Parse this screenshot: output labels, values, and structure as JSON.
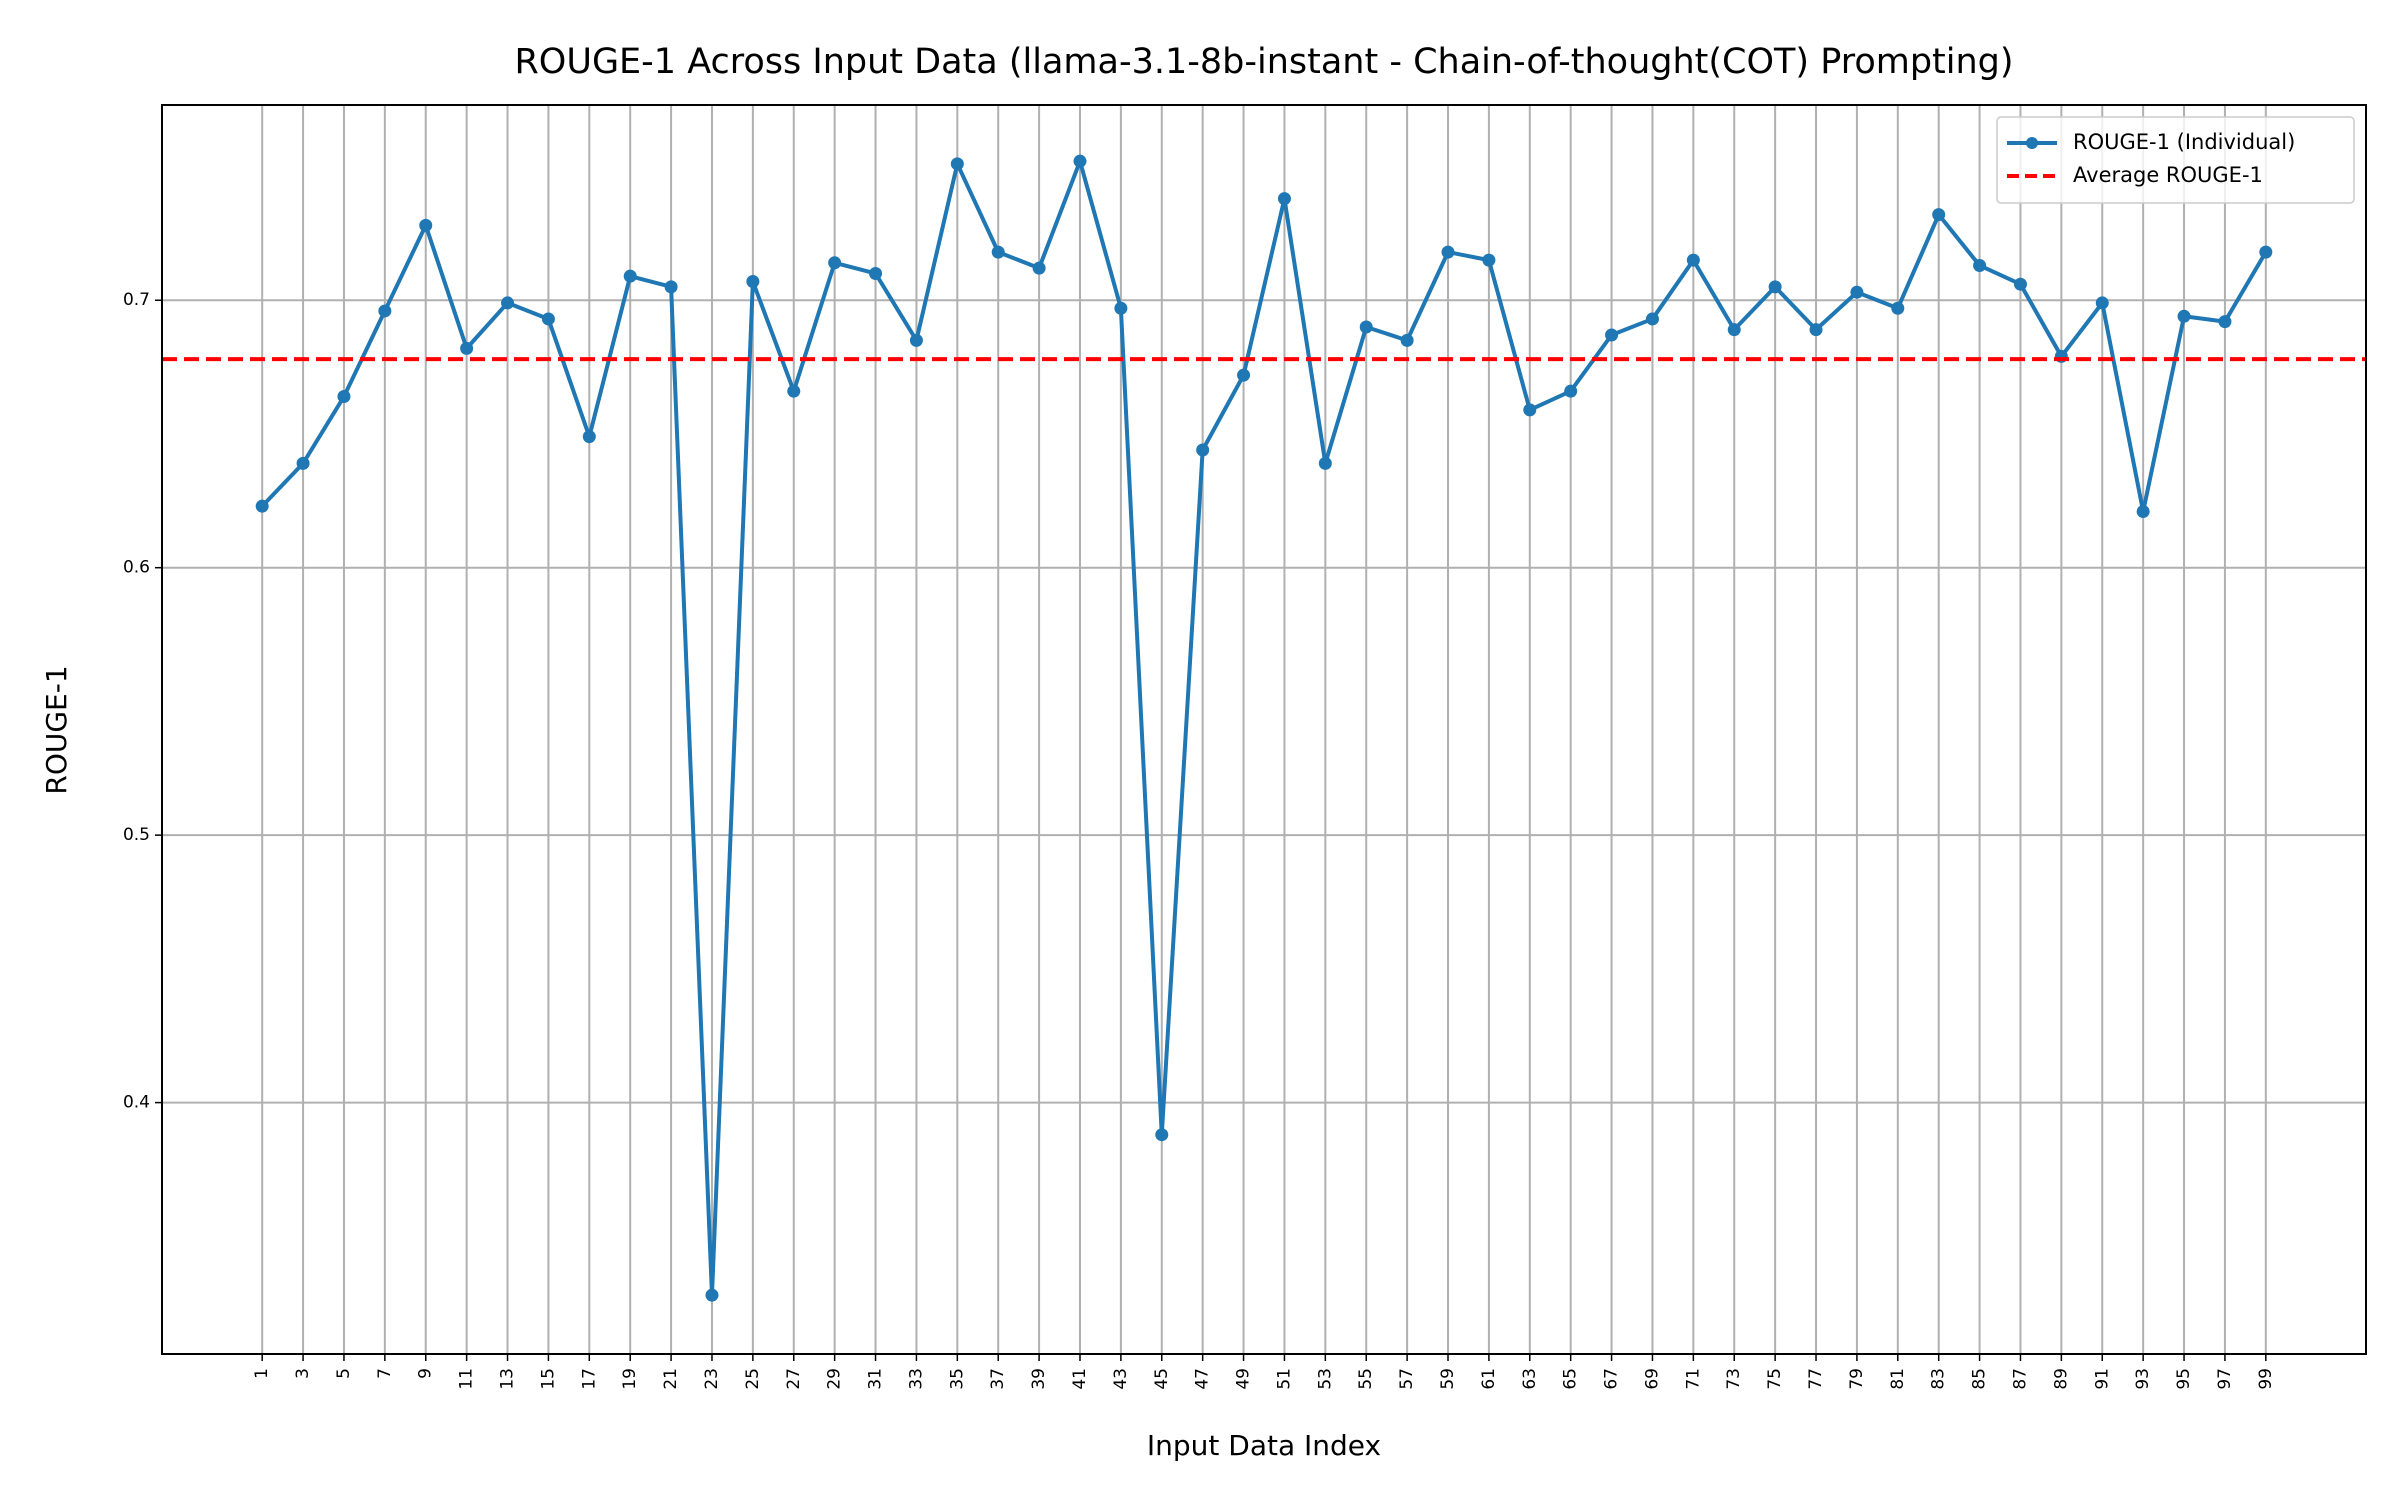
{
  "chart_data": {
    "type": "line",
    "title": "ROUGE-1 Across Input Data (llama-3.1-8b-instant - Chain-of-thought(COT) Prompting)",
    "x_label": "Input Data Index",
    "y_label": "ROUGE-1",
    "x": [
      1,
      3,
      5,
      7,
      9,
      11,
      13,
      15,
      17,
      19,
      21,
      23,
      25,
      27,
      29,
      31,
      33,
      35,
      37,
      39,
      41,
      43,
      45,
      47,
      49,
      51,
      53,
      55,
      57,
      59,
      61,
      63,
      65,
      67,
      69,
      71,
      73,
      75,
      77,
      79,
      81,
      83,
      85,
      87,
      89,
      91,
      93,
      95,
      97,
      99
    ],
    "series": [
      {
        "name": "ROUGE-1 (Individual)",
        "color": "#1f77b4",
        "values": [
          0.623,
          0.639,
          0.664,
          0.696,
          0.728,
          0.682,
          0.699,
          0.693,
          0.649,
          0.709,
          0.705,
          0.328,
          0.707,
          0.666,
          0.714,
          0.71,
          0.685,
          0.751,
          0.718,
          0.712,
          0.752,
          0.697,
          0.388,
          0.644,
          0.672,
          0.738,
          0.639,
          0.69,
          0.685,
          0.718,
          0.715,
          0.659,
          0.666,
          0.687,
          0.693,
          0.715,
          0.689,
          0.705,
          0.689,
          0.703,
          0.697,
          0.732,
          0.713,
          0.706,
          0.679,
          0.699,
          0.621,
          0.694,
          0.692,
          0.718
        ]
      }
    ],
    "reference_line": {
      "name": "Average ROUGE-1",
      "value": 0.678,
      "color": "#ff0000",
      "style": "dashed"
    },
    "xlim": [
      -3.9,
      103.9
    ],
    "ylim": [
      0.306,
      0.773
    ],
    "xticks": [
      1,
      3,
      5,
      7,
      9,
      11,
      13,
      15,
      17,
      19,
      21,
      23,
      25,
      27,
      29,
      31,
      33,
      35,
      37,
      39,
      41,
      43,
      45,
      47,
      49,
      51,
      53,
      55,
      57,
      59,
      61,
      63,
      65,
      67,
      69,
      71,
      73,
      75,
      77,
      79,
      81,
      83,
      85,
      87,
      89,
      91,
      93,
      95,
      97,
      99
    ],
    "yticks": [
      0.4,
      0.5,
      0.6,
      0.7
    ],
    "grid": true,
    "legend": "upper right"
  }
}
